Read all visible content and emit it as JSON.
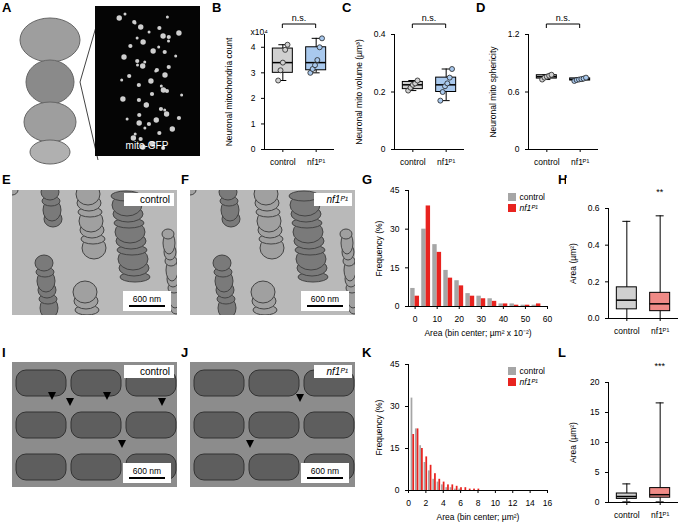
{
  "images": [
    {
      "panel": "A",
      "label": "mito-GFP"
    },
    {
      "panel": "E",
      "label": "control",
      "scale_bar": "600 nm"
    },
    {
      "panel": "F",
      "label": "nf1ᴾ¹",
      "scale_bar": "600 nm"
    },
    {
      "panel": "I",
      "label": "control",
      "scale_bar": "600 nm"
    },
    {
      "panel": "J",
      "label": "nf1ᴾ¹",
      "scale_bar": "600 nm"
    }
  ],
  "chart_data": [
    {
      "panel": "B",
      "type": "box",
      "ylabel": "Neuronal mitochondria count",
      "multiplier_label": "x10⁴",
      "ylim": [
        0,
        4.5
      ],
      "yticks": [
        0,
        1,
        2,
        3,
        4
      ],
      "annotation": "n.s.",
      "annotation_over": [
        "control",
        "nf1ᴾ¹"
      ],
      "groups": [
        {
          "name": "control",
          "color": "#d0d0d0",
          "min": 2.7,
          "q1": 3.0,
          "median": 3.4,
          "q3": 3.95,
          "max": 4.1,
          "points": [
            2.7,
            3.1,
            3.4,
            3.9,
            4.1
          ]
        },
        {
          "name": "nf1ᴾ¹",
          "color": "#a9c9ee",
          "min": 3.0,
          "q1": 3.1,
          "median": 3.4,
          "q3": 4.0,
          "max": 4.35,
          "points": [
            3.0,
            3.15,
            3.3,
            3.5,
            4.0,
            4.35
          ]
        }
      ]
    },
    {
      "panel": "C",
      "type": "box",
      "ylabel": "Neuronal mito volume (µm³)",
      "ylim": [
        0,
        0.4
      ],
      "yticks": [
        0,
        0.2,
        0.4
      ],
      "annotation": "n.s.",
      "annotation_over": [
        "control",
        "nf1ᴾ¹"
      ],
      "groups": [
        {
          "name": "control",
          "color": "#d0d0d0",
          "min": 0.205,
          "q1": 0.21,
          "median": 0.225,
          "q3": 0.235,
          "max": 0.24,
          "points": [
            0.205,
            0.215,
            0.225,
            0.23,
            0.24
          ]
        },
        {
          "name": "nf1ᴾ¹",
          "color": "#a9c9ee",
          "min": 0.17,
          "q1": 0.2,
          "median": 0.225,
          "q3": 0.25,
          "max": 0.28,
          "points": [
            0.17,
            0.2,
            0.22,
            0.23,
            0.25,
            0.28
          ]
        }
      ]
    },
    {
      "panel": "D",
      "type": "box",
      "ylabel": "Neuronal mito sphericity",
      "ylim": [
        0,
        1.2
      ],
      "yticks": [
        0,
        0.6,
        1.2
      ],
      "annotation": "n.s.",
      "annotation_over": [
        "control",
        "nf1ᴾ¹"
      ],
      "groups": [
        {
          "name": "control",
          "color": "#d0d0d0",
          "min": 0.73,
          "q1": 0.74,
          "median": 0.76,
          "q3": 0.775,
          "max": 0.78,
          "points": [
            0.73,
            0.75,
            0.76,
            0.77,
            0.78
          ]
        },
        {
          "name": "nf1ᴾ¹",
          "color": "#a9c9ee",
          "min": 0.715,
          "q1": 0.72,
          "median": 0.732,
          "q3": 0.742,
          "max": 0.75,
          "points": [
            0.715,
            0.725,
            0.73,
            0.735,
            0.74,
            0.75
          ]
        }
      ]
    },
    {
      "panel": "G",
      "type": "bar",
      "xlabel": "Area (bin center; µm² x 10⁻²)",
      "ylabel": "Frequency (%)",
      "x": [
        0,
        5,
        10,
        15,
        20,
        25,
        30,
        35,
        40,
        45,
        50,
        55
      ],
      "xlim": [
        -3,
        60
      ],
      "xticks": [
        0,
        10,
        20,
        30,
        40,
        50,
        60
      ],
      "ylim": [
        0,
        45
      ],
      "yticks": [
        0,
        15,
        30,
        45
      ],
      "legend": "top-right",
      "series": [
        {
          "name": "control",
          "color": "#a6a6a6",
          "values": [
            7,
            30,
            24,
            14,
            10,
            5,
            4,
            3,
            1,
            1,
            0.5,
            0.5
          ]
        },
        {
          "name": "nf1ᴾ¹",
          "color": "#e8231f",
          "values": [
            4,
            39,
            21,
            11,
            8,
            4,
            3,
            2,
            1,
            0.5,
            0.5,
            1
          ]
        }
      ]
    },
    {
      "panel": "H",
      "type": "box",
      "ylabel": "Area (µm²)",
      "ylim": [
        0,
        0.6
      ],
      "yticks": [
        {
          "value": 0,
          "label": "0.0"
        },
        0.2,
        0.4,
        0.6
      ],
      "annotation": "**",
      "annotation_over": [
        "nf1ᴾ¹"
      ],
      "groups": [
        {
          "name": "control",
          "color": "#d0d0d0",
          "min": 0.0,
          "q1": 0.05,
          "median": 0.1,
          "q3": 0.17,
          "max": 0.53
        },
        {
          "name": "nf1ᴾ¹",
          "color": "#f08a86",
          "min": 0.0,
          "q1": 0.04,
          "median": 0.08,
          "q3": 0.14,
          "max": 0.56
        }
      ]
    },
    {
      "panel": "K",
      "type": "bar",
      "xlabel": "Area (bin center; µm²)",
      "ylabel": "Frequency (%)",
      "x": [
        0.5,
        1,
        1.5,
        2,
        2.5,
        3,
        3.5,
        4,
        4.5,
        5,
        5.5,
        6,
        6.5,
        7,
        7.5,
        8
      ],
      "xlim": [
        0,
        16
      ],
      "xticks": [
        0,
        2,
        4,
        6,
        8,
        10,
        12,
        14,
        16
      ],
      "ylim": [
        0,
        45
      ],
      "yticks": [
        0,
        15,
        30,
        45
      ],
      "legend": "top-right",
      "series": [
        {
          "name": "control",
          "color": "#a6a6a6",
          "values": [
            33,
            22,
            16,
            10,
            7,
            4,
            3,
            2,
            1,
            1,
            0.5,
            0.5,
            0,
            0,
            0,
            0
          ]
        },
        {
          "name": "nf1ᴾ¹",
          "color": "#e8231f",
          "values": [
            20,
            22,
            15,
            12,
            9,
            6,
            4,
            3,
            2,
            2,
            1.5,
            1,
            1,
            0.5,
            0.5,
            0.5
          ]
        }
      ]
    },
    {
      "panel": "L",
      "type": "box",
      "ylabel": "Area (µm²)",
      "ylim": [
        0,
        20
      ],
      "yticks": [
        0,
        5,
        10,
        15,
        20
      ],
      "annotation": "***",
      "annotation_over": [
        "nf1ᴾ¹"
      ],
      "groups": [
        {
          "name": "control",
          "color": "#d0d0d0",
          "min": 0.1,
          "q1": 0.6,
          "median": 1.0,
          "q3": 1.5,
          "max": 3.1
        },
        {
          "name": "nf1ᴾ¹",
          "color": "#f08a86",
          "min": 0.1,
          "q1": 0.8,
          "median": 1.3,
          "q3": 2.4,
          "max": 16.6
        }
      ]
    }
  ]
}
